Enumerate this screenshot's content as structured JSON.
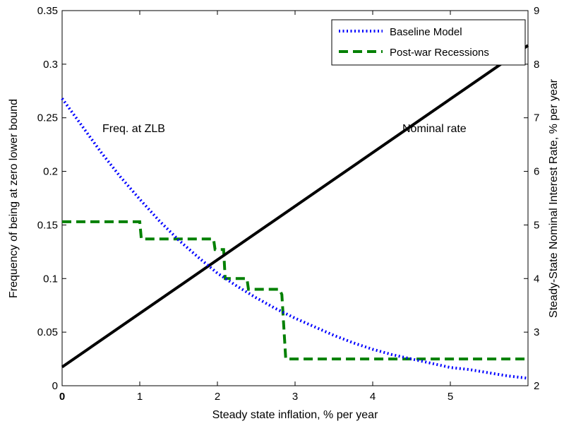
{
  "chart_data": {
    "type": "line",
    "title": "",
    "xlabel": "Steady state inflation, % per year",
    "ylabel": "Frequency of being at zero lower bound",
    "y2label": "Steady-State Nominal Interest Rate, % per year",
    "xlim": [
      0,
      6
    ],
    "ylim": [
      0,
      0.35
    ],
    "y2lim": [
      2,
      9
    ],
    "xticks": [
      0,
      1,
      2,
      3,
      4,
      5
    ],
    "yticks": [
      0,
      0.05,
      0.1,
      0.15,
      0.2,
      0.25,
      0.3,
      0.35
    ],
    "yticklabels": [
      "0",
      "0.05",
      "0.1",
      "0.15",
      "0.2",
      "0.25",
      "0.3",
      "0.35"
    ],
    "y2ticks": [
      2,
      3,
      4,
      5,
      6,
      7,
      8,
      9
    ],
    "grid": false,
    "legend_position": "top-right",
    "annotations": [
      {
        "text": "Freq. at ZLB",
        "x": 1.2,
        "y": 0.2
      },
      {
        "text": "Nominal rate",
        "x": 5.05,
        "y": 0.2
      }
    ],
    "series": [
      {
        "name": "Baseline Model",
        "axis": "left",
        "style": "dotted",
        "color": "#0000ff",
        "x": [
          0,
          0.25,
          0.5,
          0.75,
          1,
          1.25,
          1.5,
          1.75,
          2,
          2.25,
          2.5,
          2.75,
          3,
          3.25,
          3.5,
          3.75,
          4,
          4.25,
          4.5,
          4.75,
          5,
          5.25,
          5.5,
          5.75,
          6
        ],
        "y": [
          0.268,
          0.243,
          0.218,
          0.195,
          0.174,
          0.154,
          0.136,
          0.12,
          0.105,
          0.093,
          0.082,
          0.072,
          0.063,
          0.055,
          0.047,
          0.04,
          0.034,
          0.029,
          0.025,
          0.021,
          0.017,
          0.015,
          0.012,
          0.009,
          0.007
        ]
      },
      {
        "name": "Post-war Recessions",
        "axis": "left",
        "style": "dashed",
        "color": "#008000",
        "step_x": [
          0,
          1,
          1.02,
          1.95,
          1.97,
          2.08,
          2.1,
          2.38,
          2.4,
          2.8,
          2.83,
          2.88,
          6
        ],
        "step_y": [
          0.153,
          0.153,
          0.137,
          0.137,
          0.127,
          0.127,
          0.1,
          0.1,
          0.09,
          0.09,
          0.085,
          0.025,
          0.025
        ]
      },
      {
        "name": "Nominal rate",
        "axis": "right",
        "style": "solid",
        "color": "#000000",
        "x": [
          0,
          6
        ],
        "y": [
          2.35,
          8.35
        ]
      }
    ]
  }
}
